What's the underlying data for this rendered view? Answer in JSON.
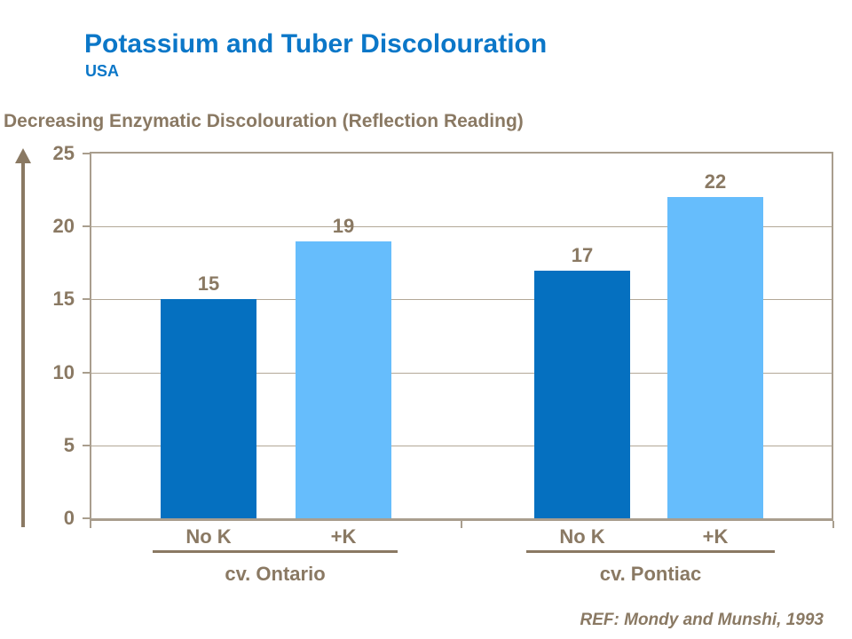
{
  "header": {
    "title": "Potassium and Tuber Discolouration",
    "subtitle": "USA"
  },
  "footer": {
    "ref": "REF: Mondy and Munshi, 1993"
  },
  "colors": {
    "title_blue": "#0b77c8",
    "text_taupe": "#8a7963",
    "plot_border": "#a99e8e",
    "gridline": "#b3a897",
    "bar_dark_blue": "#0570c0",
    "bar_light_blue": "#66bdfc",
    "background": "#ffffff"
  },
  "chart_data": {
    "type": "bar",
    "title": "",
    "xlabel": "",
    "ylabel": "Decreasing Enzymatic Discolouration (Reflection Reading)",
    "ylim": [
      0,
      25
    ],
    "yticks": [
      0,
      5,
      10,
      15,
      20,
      25
    ],
    "grid": true,
    "legend_position": "none",
    "axis_arrow": "up",
    "groups": [
      "cv. Ontario",
      "cv. Pontiac"
    ],
    "categories": [
      "No K",
      "+K"
    ],
    "series": [
      {
        "name": "No K",
        "color": "#0570c0",
        "values": [
          15,
          17
        ]
      },
      {
        "name": "+K",
        "color": "#66bdfc",
        "values": [
          19,
          22
        ]
      }
    ],
    "bar_value_labels": {
      "No K": [
        15,
        17
      ],
      "+K": [
        19,
        22
      ]
    }
  }
}
